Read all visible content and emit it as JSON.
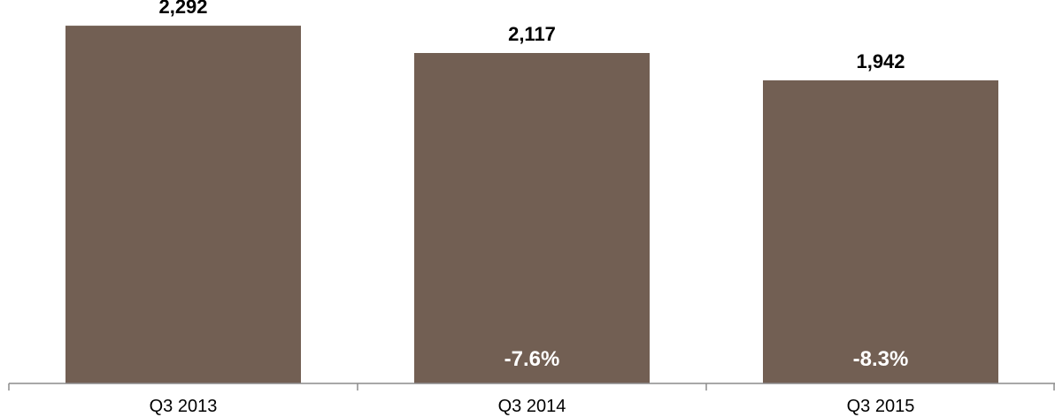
{
  "chart_data": {
    "type": "bar",
    "categories": [
      "Q3 2013",
      "Q3 2014",
      "Q3 2015"
    ],
    "values": [
      2292,
      2117,
      1942
    ],
    "value_labels": [
      "2,292",
      "2,117",
      "1,942"
    ],
    "change_labels": [
      "",
      "-7.6%",
      "-8.3%"
    ],
    "title": "",
    "xlabel": "",
    "ylabel": "",
    "ylim": [
      0,
      2400
    ],
    "grid": false,
    "legend": "none",
    "bar_color": "#725F53",
    "axis_color": "#8C8C8C"
  }
}
